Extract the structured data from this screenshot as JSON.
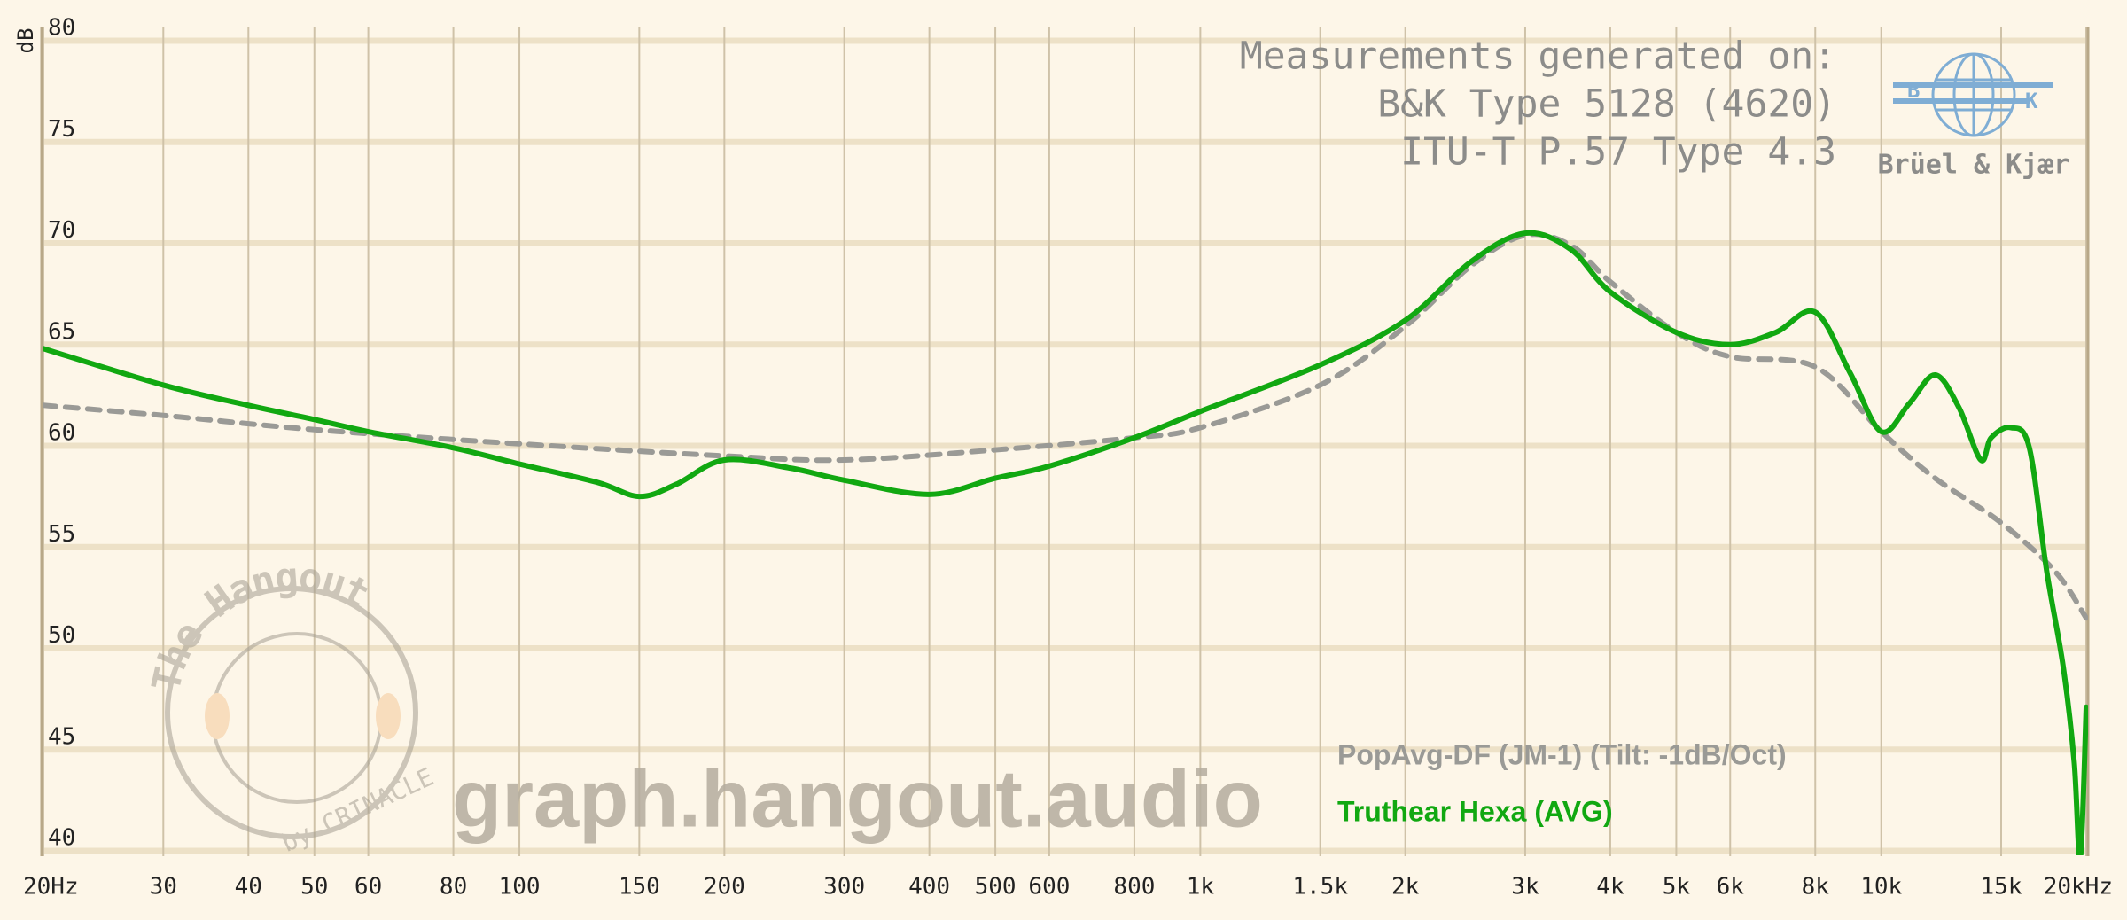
{
  "chart_data": {
    "type": "line",
    "xscale": "log",
    "grid": true,
    "ylabel": "dB",
    "xlim": [
      20,
      20000
    ],
    "ylim": [
      40,
      80
    ],
    "yticks": [
      40,
      45,
      50,
      55,
      60,
      65,
      70,
      75,
      80
    ],
    "xticks": [
      {
        "value": 20,
        "label": "20Hz"
      },
      30,
      40,
      50,
      60,
      80,
      100,
      150,
      200,
      300,
      400,
      500,
      600,
      800,
      {
        "value": 1000,
        "label": "1k"
      },
      {
        "value": 1500,
        "label": "1.5k"
      },
      {
        "value": 2000,
        "label": "2k"
      },
      {
        "value": 3000,
        "label": "3k"
      },
      {
        "value": 4000,
        "label": "4k"
      },
      {
        "value": 5000,
        "label": "5k"
      },
      {
        "value": 6000,
        "label": "6k"
      },
      {
        "value": 8000,
        "label": "8k"
      },
      {
        "value": 10000,
        "label": "10k"
      },
      {
        "value": 15000,
        "label": "15k"
      },
      {
        "value": 20000,
        "label": "20kHz"
      }
    ],
    "annotations": [
      "Measurements generated on:",
      "B&K Type 5128 (4620)",
      "ITU-T P.57 Type 4.3"
    ],
    "logo": {
      "letters": [
        "B",
        "K"
      ],
      "name": "Brüel & Kjær"
    },
    "watermark": "graph.hangout.audio",
    "badge": [
      "The Hangout",
      "by CRINACLE"
    ],
    "series": [
      {
        "name": "PopAvg-DF (JM-1) (Tilt: -1dB/Oct)",
        "color": "#9a9a96",
        "dash": true,
        "x": [
          20,
          30,
          50,
          100,
          200,
          300,
          500,
          800,
          1000,
          1500,
          2000,
          2500,
          3000,
          3500,
          4000,
          5000,
          6000,
          8000,
          10000,
          12000,
          15000,
          18000,
          20000
        ],
        "values": [
          62.0,
          61.5,
          60.8,
          60.1,
          59.5,
          59.3,
          59.8,
          60.4,
          60.9,
          63.0,
          65.9,
          68.9,
          70.4,
          69.9,
          68.1,
          65.6,
          64.4,
          63.9,
          60.7,
          58.4,
          56.2,
          53.8,
          51.5
        ]
      },
      {
        "name": "Truthear Hexa (AVG)",
        "color": "#11a811",
        "dash": false,
        "x": [
          20,
          30,
          40,
          50,
          60,
          80,
          100,
          130,
          150,
          170,
          200,
          250,
          300,
          400,
          500,
          600,
          800,
          1000,
          1500,
          2000,
          2500,
          3000,
          3500,
          4000,
          5000,
          6000,
          7000,
          8000,
          9000,
          10000,
          11000,
          12000,
          13000,
          14000,
          14500,
          15500,
          16500,
          17500,
          18500,
          19200,
          19600,
          20000
        ],
        "values": [
          64.8,
          63.0,
          62.0,
          61.3,
          60.7,
          59.9,
          59.1,
          58.2,
          57.5,
          58.1,
          59.3,
          58.9,
          58.3,
          57.6,
          58.4,
          59.0,
          60.4,
          61.7,
          64.0,
          66.2,
          69.1,
          70.5,
          69.7,
          67.6,
          65.6,
          65.0,
          65.6,
          66.6,
          63.6,
          60.7,
          62.1,
          63.5,
          61.9,
          59.3,
          60.4,
          60.9,
          59.9,
          53.8,
          49.1,
          44.4,
          39.6,
          47.1
        ]
      }
    ]
  }
}
